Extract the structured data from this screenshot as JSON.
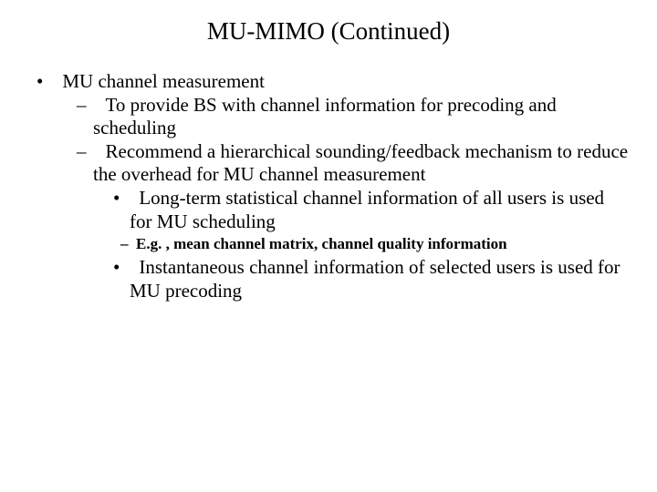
{
  "title": "MU-MIMO (Continued)",
  "b1": "MU channel measurement",
  "b2a": "To provide BS with channel information for precoding and scheduling",
  "b2b": "Recommend a hierarchical sounding/feedback mechanism to reduce the overhead for MU channel measurement",
  "b3a": "Long-term statistical channel information of all users is used for MU scheduling",
  "b4a": "E.g. , mean channel matrix, channel quality information",
  "b3b": "Instantaneous channel information of selected users is used for MU precoding"
}
